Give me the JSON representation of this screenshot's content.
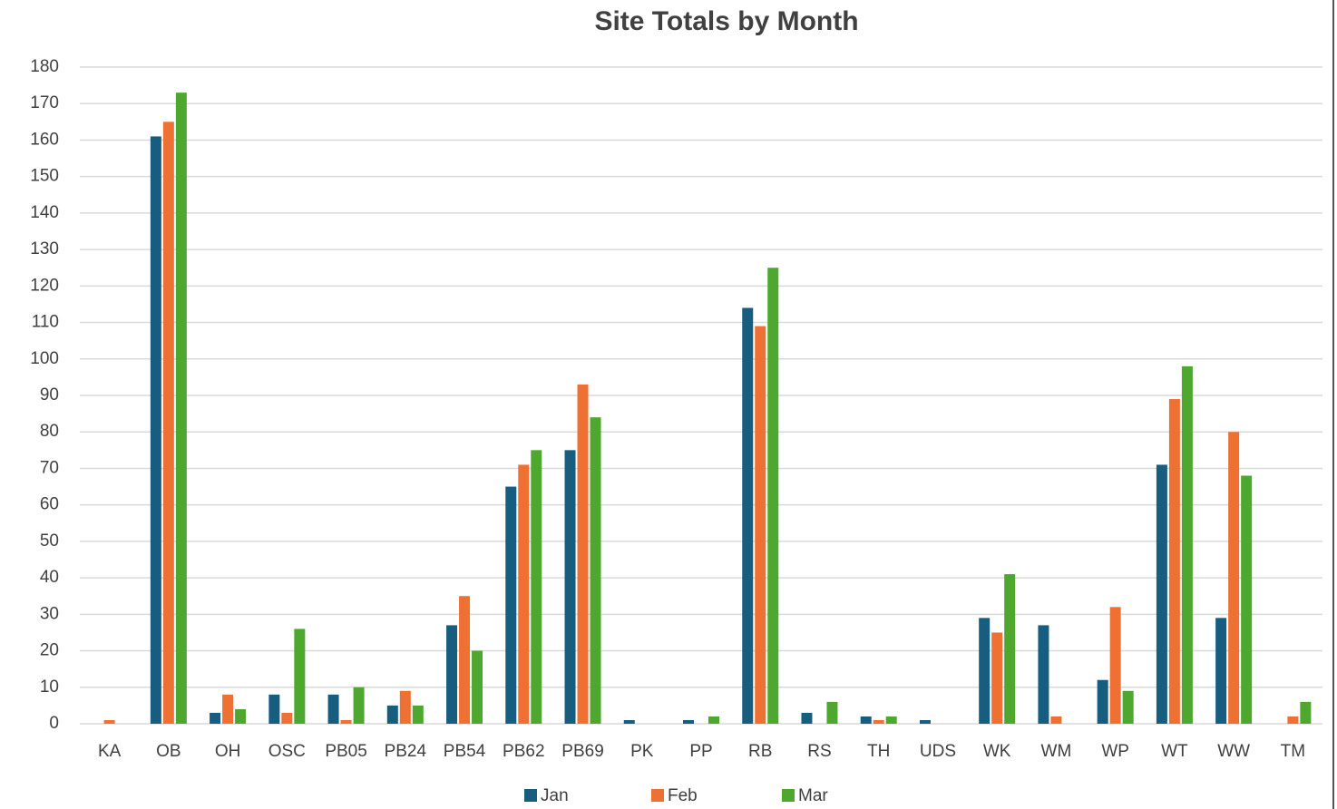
{
  "chart_data": {
    "type": "bar",
    "title": "Site Totals by Month",
    "categories": [
      "KA",
      "OB",
      "OH",
      "OSC",
      "PB05",
      "PB24",
      "PB54",
      "PB62",
      "PB69",
      "PK",
      "PP",
      "RB",
      "RS",
      "TH",
      "UDS",
      "WK",
      "WM",
      "WP",
      "WT",
      "WW",
      "TM"
    ],
    "series": [
      {
        "name": "Jan",
        "color": "#175d80",
        "values": [
          0,
          161,
          3,
          8,
          8,
          5,
          27,
          65,
          75,
          1,
          1,
          114,
          3,
          2,
          1,
          29,
          27,
          12,
          71,
          29,
          0
        ]
      },
      {
        "name": "Feb",
        "color": "#ee7133",
        "values": [
          1,
          165,
          8,
          3,
          1,
          9,
          35,
          71,
          93,
          0,
          0,
          109,
          0,
          1,
          0,
          25,
          2,
          32,
          89,
          80,
          2
        ]
      },
      {
        "name": "Mar",
        "color": "#4ea72e",
        "values": [
          0,
          173,
          4,
          26,
          10,
          5,
          20,
          75,
          84,
          0,
          2,
          125,
          6,
          2,
          0,
          41,
          0,
          9,
          98,
          68,
          6
        ]
      }
    ],
    "ylim": [
      0,
      180
    ],
    "yticks": [
      0,
      10,
      20,
      30,
      40,
      50,
      60,
      70,
      80,
      90,
      100,
      110,
      120,
      130,
      140,
      150,
      160,
      170,
      180
    ],
    "grid": true,
    "legend": "bottom"
  }
}
